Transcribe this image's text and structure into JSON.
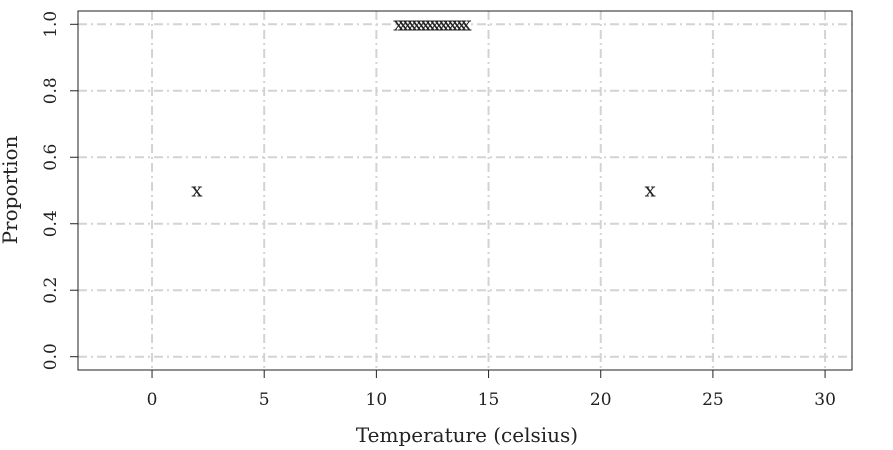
{
  "chart_data": {
    "type": "scatter",
    "title": "",
    "xlabel": "Temperature (celsius)",
    "ylabel": "Proportion",
    "xlim": [
      -3.3,
      31.2
    ],
    "ylim": [
      -0.04,
      1.04
    ],
    "x_ticks": [
      0,
      5,
      10,
      15,
      20,
      25,
      30
    ],
    "x_tick_labels": [
      "0",
      "5",
      "10",
      "15",
      "20",
      "25",
      "30"
    ],
    "y_ticks": [
      0.0,
      0.2,
      0.4,
      0.6,
      0.8,
      1.0
    ],
    "y_tick_labels": [
      "0.0",
      "0.2",
      "0.4",
      "0.6",
      "0.8",
      "1.0"
    ],
    "grid": true,
    "marker": "x",
    "points": [
      {
        "x": 2.0,
        "y": 0.5
      },
      {
        "x": 22.2,
        "y": 0.5
      },
      {
        "x": 11.0,
        "y": 1.0
      },
      {
        "x": 11.2,
        "y": 1.0
      },
      {
        "x": 11.4,
        "y": 1.0
      },
      {
        "x": 11.6,
        "y": 1.0
      },
      {
        "x": 11.8,
        "y": 1.0
      },
      {
        "x": 12.0,
        "y": 1.0
      },
      {
        "x": 12.2,
        "y": 1.0
      },
      {
        "x": 12.4,
        "y": 1.0
      },
      {
        "x": 12.6,
        "y": 1.0
      },
      {
        "x": 12.8,
        "y": 1.0
      },
      {
        "x": 13.0,
        "y": 1.0
      },
      {
        "x": 13.2,
        "y": 1.0
      },
      {
        "x": 13.4,
        "y": 1.0
      },
      {
        "x": 13.6,
        "y": 1.0
      },
      {
        "x": 13.8,
        "y": 1.0
      },
      {
        "x": 14.0,
        "y": 1.0
      }
    ],
    "colors": {
      "grid": "#d3d3d3",
      "frame": "#222222",
      "marker": "#222222"
    }
  }
}
